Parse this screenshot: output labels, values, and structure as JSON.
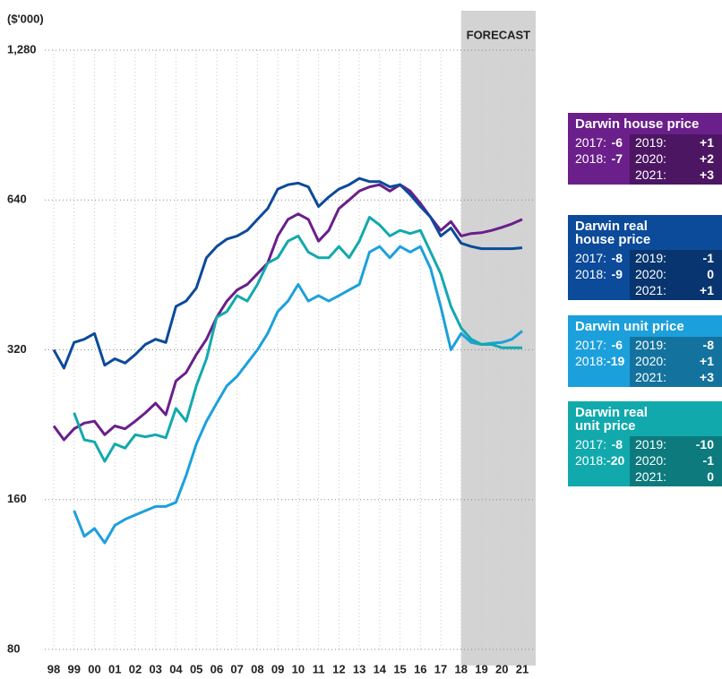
{
  "chart_data": {
    "type": "line",
    "y_label": "($'000)",
    "log_y": true,
    "grid": true,
    "ylim": [
      80,
      1280
    ],
    "yticks": [
      {
        "value": 1280,
        "label": "1,280"
      },
      640,
      320,
      160,
      80
    ],
    "xlim": [
      1997.56,
      2021.66
    ],
    "xticks": [
      {
        "value": 1998,
        "label": "98"
      },
      {
        "value": 1999,
        "label": "99"
      },
      {
        "value": 2000,
        "label": "00"
      },
      {
        "value": 2001,
        "label": "01"
      },
      {
        "value": 2002,
        "label": "02"
      },
      {
        "value": 2003,
        "label": "03"
      },
      {
        "value": 2004,
        "label": "04"
      },
      {
        "value": 2005,
        "label": "05"
      },
      {
        "value": 2006,
        "label": "06"
      },
      {
        "value": 2007,
        "label": "07"
      },
      {
        "value": 2008,
        "label": "08"
      },
      {
        "value": 2009,
        "label": "09"
      },
      {
        "value": 2010,
        "label": "10"
      },
      {
        "value": 2011,
        "label": "11"
      },
      {
        "value": 2012,
        "label": "12"
      },
      {
        "value": 2013,
        "label": "13"
      },
      {
        "value": 2014,
        "label": "14"
      },
      {
        "value": 2015,
        "label": "15"
      },
      {
        "value": 2016,
        "label": "16"
      },
      {
        "value": 2017,
        "label": "17"
      },
      {
        "value": 2018,
        "label": "18"
      },
      {
        "value": 2019,
        "label": "19"
      },
      {
        "value": 2020,
        "label": "20"
      },
      {
        "value": 2021,
        "label": "21"
      }
    ],
    "forecast": {
      "label": "FORECAST",
      "start": 2018
    },
    "x": [
      1998,
      1998.5,
      1999,
      1999.5,
      2000,
      2000.5,
      2001,
      2001.5,
      2002,
      2002.5,
      2003,
      2003.5,
      2004,
      2004.5,
      2005,
      2005.5,
      2006,
      2006.5,
      2007,
      2007.5,
      2008,
      2008.5,
      2009,
      2009.5,
      2010,
      2010.5,
      2011,
      2011.5,
      2012,
      2012.5,
      2013,
      2013.5,
      2014,
      2014.5,
      2015,
      2015.5,
      2016,
      2016.5,
      2017,
      2017.5,
      2018,
      2018.5,
      2019,
      2019.5,
      2020,
      2020.5,
      2021
    ],
    "series": [
      {
        "name": "Darwin house price",
        "color": "#6a1f8a",
        "values": [
          225,
          211,
          222,
          228,
          230,
          216,
          225,
          222,
          230,
          239,
          250,
          237,
          277,
          288,
          313,
          336,
          372,
          401,
          422,
          433,
          455,
          478,
          542,
          585,
          600,
          585,
          529,
          556,
          615,
          640,
          667,
          680,
          687,
          667,
          687,
          667,
          630,
          591,
          556,
          579,
          542,
          548,
          550,
          556,
          564,
          573,
          585
        ],
        "changes": [
          {
            "year": "2017:",
            "value": -6
          },
          {
            "year": "2018:",
            "value": -7
          },
          {
            "year": "2019:",
            "value": {
              "value": 1,
              "label": "+1"
            }
          },
          {
            "year": "2020:",
            "value": {
              "value": 2,
              "label": "+2"
            }
          },
          {
            "year": "2021:",
            "value": {
              "value": 3,
              "label": "+3"
            }
          }
        ]
      },
      {
        "name": "Darwin real house price",
        "color": "#0c4a9a",
        "values": [
          320,
          294,
          331,
          336,
          345,
          298,
          307,
          301,
          313,
          328,
          336,
          331,
          391,
          401,
          426,
          490,
          516,
          534,
          542,
          556,
          585,
          615,
          673,
          687,
          692,
          680,
          621,
          649,
          673,
          687,
          707,
          697,
          697,
          680,
          687,
          656,
          621,
          591,
          542,
          562,
          524,
          516,
          511,
          511,
          511,
          511,
          513
        ],
        "changes": [
          {
            "year": "2017:",
            "value": -8
          },
          {
            "year": "2018:",
            "value": -9
          },
          {
            "year": "2019:",
            "value": -1
          },
          {
            "year": "2020:",
            "value": 0
          },
          {
            "year": "2021:",
            "value": {
              "value": 1,
              "label": "+1"
            }
          }
        ]
      },
      {
        "name": "Darwin unit price",
        "color": "#1ca0dc",
        "values": [
          null,
          null,
          152,
          135,
          140,
          131,
          142,
          146,
          149,
          152,
          155,
          155,
          158,
          179,
          207,
          230,
          250,
          271,
          283,
          301,
          320,
          345,
          382,
          401,
          433,
          401,
          411,
          401,
          411,
          422,
          433,
          503,
          516,
          490,
          516,
          503,
          516,
          466,
          391,
          320,
          345,
          331,
          328,
          330,
          331,
          336,
          349
        ],
        "changes": [
          {
            "year": "2017:",
            "value": -6
          },
          {
            "year": "2018:",
            "value": -19
          },
          {
            "year": "2019:",
            "value": -8
          },
          {
            "year": "2020:",
            "value": {
              "value": 1,
              "label": "+1"
            }
          },
          {
            "year": "2021:",
            "value": {
              "value": 3,
              "label": "+3"
            }
          }
        ]
      },
      {
        "name": "Darwin real unit price",
        "color": "#12a9ad",
        "values": [
          null,
          null,
          239,
          211,
          209,
          191,
          207,
          203,
          216,
          214,
          216,
          213,
          244,
          230,
          271,
          307,
          372,
          382,
          411,
          401,
          433,
          478,
          490,
          529,
          542,
          503,
          490,
          490,
          516,
          490,
          529,
          591,
          570,
          542,
          556,
          548,
          556,
          503,
          455,
          391,
          354,
          336,
          328,
          328,
          323,
          323,
          323
        ],
        "changes": [
          {
            "year": "2017:",
            "value": -8
          },
          {
            "year": "2018:",
            "value": -20
          },
          {
            "year": "2019:",
            "value": -10
          },
          {
            "year": "2020:",
            "value": {
              "value": -1,
              "label": "-1"
            }
          },
          {
            "year": "2021:",
            "value": 0
          }
        ]
      }
    ]
  }
}
